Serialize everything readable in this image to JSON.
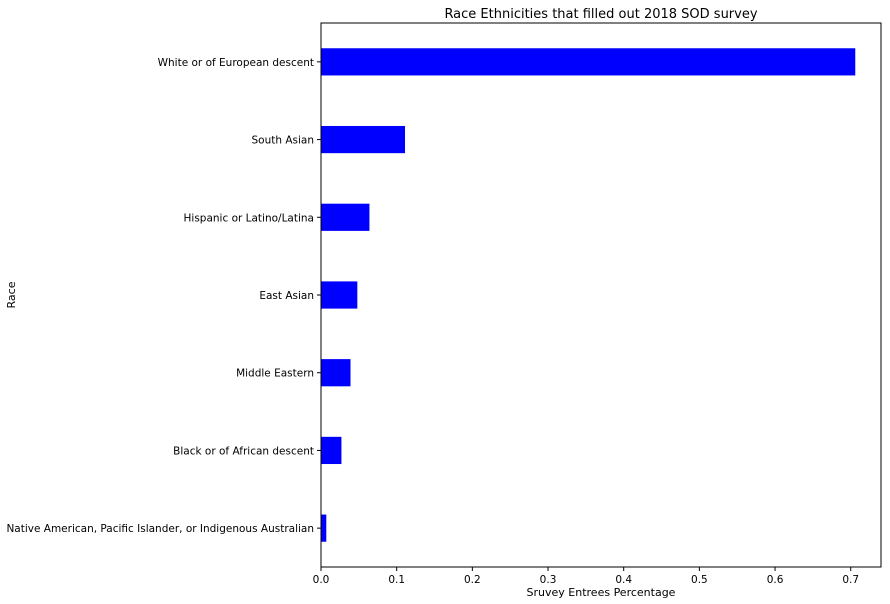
{
  "chart_data": {
    "type": "bar",
    "orientation": "horizontal",
    "title": "Race Ethnicities that filled out 2018 SOD survey",
    "xlabel": "Sruvey Entrees Percentage",
    "ylabel": "Race",
    "categories": [
      "White or of European descent",
      "South Asian",
      "Hispanic or Latino/Latina",
      "East Asian",
      "Middle Eastern",
      "Black or of African descent",
      "Native American, Pacific Islander, or Indigenous Australian"
    ],
    "values": [
      0.706,
      0.111,
      0.064,
      0.048,
      0.039,
      0.027,
      0.007
    ],
    "xlim": [
      0,
      0.74
    ],
    "xticks": [
      0,
      0.1,
      0.2,
      0.3,
      0.4,
      0.5,
      0.6,
      0.7
    ],
    "xtick_labels": [
      "0.0",
      "0.1",
      "0.2",
      "0.3",
      "0.4",
      "0.5",
      "0.6",
      "0.7"
    ],
    "bar_color": "#0000ff",
    "grid": false,
    "legend": false
  }
}
